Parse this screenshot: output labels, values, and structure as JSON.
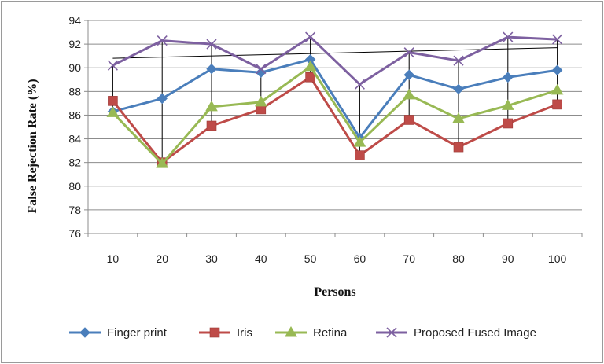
{
  "chart_data": {
    "type": "line",
    "title": "",
    "xlabel": "Persons",
    "ylabel": "False Rejection Rate (%)",
    "categories": [
      "10",
      "20",
      "30",
      "40",
      "50",
      "60",
      "70",
      "80",
      "90",
      "100"
    ],
    "ylim": [
      76,
      94
    ],
    "yticks": [
      "76",
      "78",
      "80",
      "82",
      "84",
      "86",
      "88",
      "90",
      "92",
      "94"
    ],
    "grid": "horizontal",
    "legend_position": "bottom",
    "series": [
      {
        "name": "Finger print",
        "color": "#4a7ebb",
        "marker": "diamond",
        "values": [
          86.3,
          87.4,
          89.9,
          89.6,
          90.7,
          84.1,
          89.4,
          88.2,
          89.2,
          89.8
        ]
      },
      {
        "name": "Iris",
        "color": "#be4b48",
        "marker": "square",
        "values": [
          87.2,
          82.0,
          85.1,
          86.5,
          89.2,
          82.6,
          85.6,
          83.3,
          85.3,
          86.9
        ]
      },
      {
        "name": "Retina",
        "color": "#98b954",
        "marker": "triangle",
        "values": [
          86.2,
          81.9,
          86.7,
          87.1,
          90.1,
          83.7,
          87.7,
          85.7,
          86.8,
          88.1
        ]
      },
      {
        "name": "Proposed Fused Image",
        "color": "#7d60a0",
        "marker": "x",
        "values": [
          90.2,
          92.3,
          92.0,
          89.9,
          92.6,
          88.6,
          91.3,
          90.6,
          92.6,
          92.4
        ]
      }
    ],
    "trendline": {
      "color": "#000000",
      "values": [
        90.8,
        91.7
      ]
    }
  }
}
